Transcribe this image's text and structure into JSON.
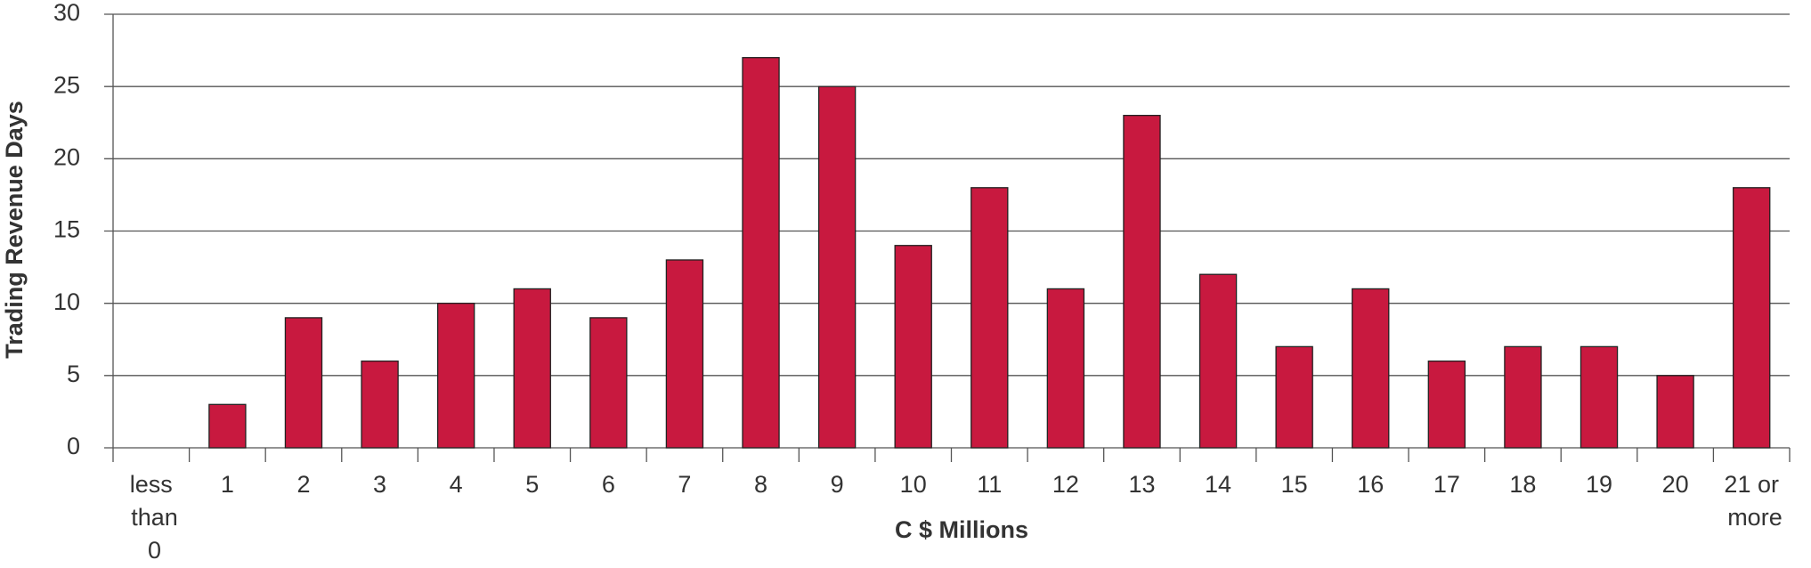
{
  "chart_data": {
    "type": "bar",
    "x_label": "C $ Millions",
    "y_label": "Trading Revenue Days",
    "categories": [
      "less than 0",
      "1",
      "2",
      "3",
      "4",
      "5",
      "6",
      "7",
      "8",
      "9",
      "10",
      "11",
      "12",
      "13",
      "14",
      "15",
      "16",
      "17",
      "18",
      "19",
      "20",
      "21 or more"
    ],
    "values": [
      0,
      3,
      9,
      6,
      10,
      11,
      9,
      13,
      27,
      25,
      14,
      18,
      11,
      23,
      12,
      7,
      11,
      6,
      7,
      7,
      5,
      18
    ],
    "color": "#c8193f",
    "ylim": [
      0,
      30
    ],
    "yticks": [
      0,
      5,
      10,
      15,
      20,
      25,
      30
    ],
    "grid": true
  }
}
